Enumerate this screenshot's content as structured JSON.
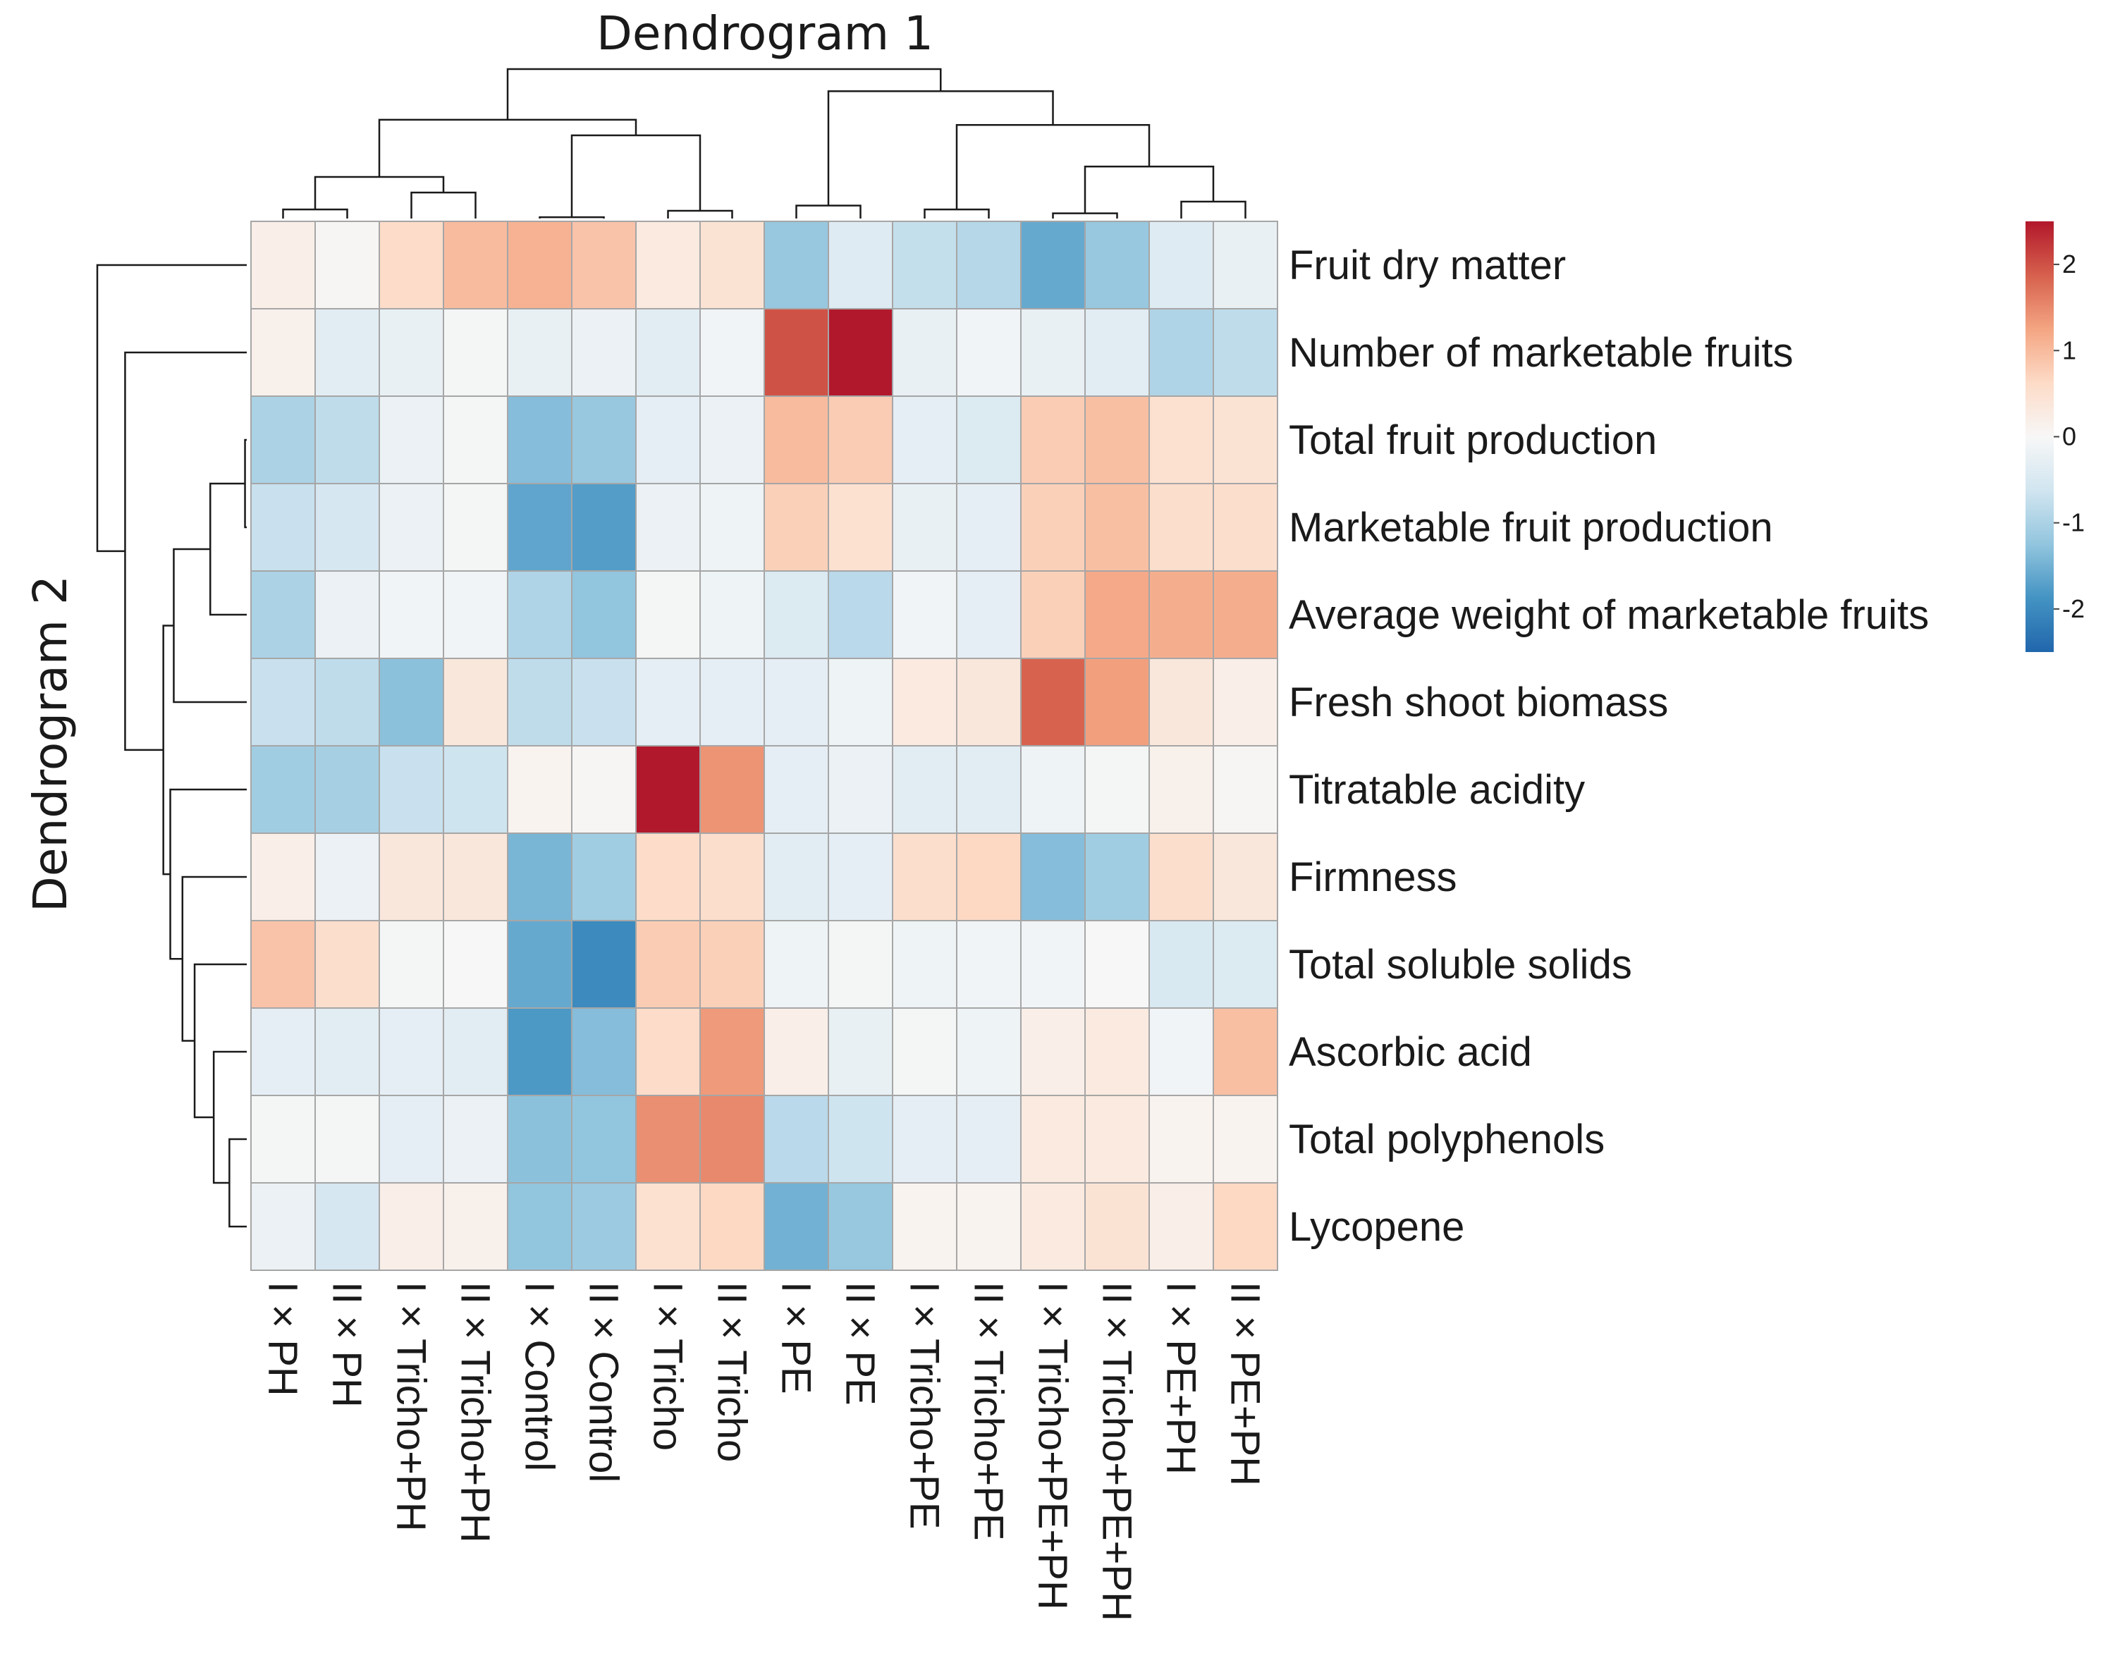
{
  "chart_data": {
    "type": "heatmap",
    "title": "",
    "column_dendrogram_label": "Dendrogram 1",
    "row_dendrogram_label": "Dendrogram 2",
    "columns": [
      "I × PH",
      "II × PH",
      "I × Tricho+PH",
      "II × Tricho+PH",
      "I × Control",
      "II × Control",
      "I × Tricho",
      "II × Tricho",
      "I × PE",
      "II × PE",
      "I × Tricho+PE",
      "II × Tricho+PE",
      "I × Tricho+PE+PH",
      "II × Tricho+PE+PH",
      "I × PE+PH",
      "II × PE+PH"
    ],
    "rows": [
      "Fruit dry matter",
      "Number of marketable fruits",
      "Total fruit production",
      "Marketable fruit production",
      "Average weight of marketable fruits",
      "Fresh shoot biomass",
      "Titratable acidity",
      "Firmness",
      "Total soluble solids",
      "Ascorbic acid",
      "Total polyphenols",
      "Lycopene"
    ],
    "values": [
      [
        0.2,
        0.05,
        0.6,
        1.0,
        1.1,
        0.9,
        0.3,
        0.45,
        -1.2,
        -0.4,
        -0.75,
        -0.9,
        -1.6,
        -1.2,
        -0.4,
        -0.25
      ],
      [
        0.15,
        -0.35,
        -0.25,
        -0.05,
        -0.25,
        -0.2,
        -0.35,
        -0.1,
        2.0,
        2.5,
        -0.25,
        -0.1,
        -0.25,
        -0.35,
        -0.95,
        -0.8
      ],
      [
        -1.0,
        -0.8,
        -0.2,
        -0.05,
        -1.35,
        -1.2,
        -0.3,
        -0.2,
        1.0,
        0.8,
        -0.3,
        -0.45,
        0.8,
        0.95,
        0.5,
        0.45
      ],
      [
        -0.7,
        -0.55,
        -0.2,
        -0.05,
        -1.65,
        -1.75,
        -0.2,
        -0.15,
        0.75,
        0.5,
        -0.25,
        -0.3,
        0.75,
        0.95,
        0.55,
        0.55
      ],
      [
        -1.0,
        -0.2,
        -0.1,
        -0.1,
        -0.95,
        -1.25,
        -0.05,
        -0.15,
        -0.45,
        -0.85,
        -0.1,
        -0.3,
        0.75,
        1.2,
        1.15,
        1.15
      ],
      [
        -0.7,
        -0.8,
        -1.3,
        0.35,
        -0.8,
        -0.7,
        -0.3,
        -0.3,
        -0.3,
        -0.15,
        0.3,
        0.35,
        1.85,
        1.3,
        0.35,
        0.2
      ],
      [
        -1.1,
        -1.05,
        -0.7,
        -0.65,
        0.1,
        0.05,
        2.5,
        1.4,
        -0.3,
        -0.2,
        -0.35,
        -0.35,
        -0.15,
        -0.05,
        0.15,
        0.05
      ],
      [
        0.2,
        -0.2,
        0.35,
        0.35,
        -1.45,
        -1.1,
        0.6,
        0.55,
        -0.35,
        -0.3,
        0.55,
        0.65,
        -1.35,
        -1.1,
        0.55,
        0.35
      ],
      [
        0.9,
        0.55,
        -0.05,
        0.0,
        -1.6,
        -2.0,
        0.8,
        0.75,
        -0.15,
        -0.05,
        -0.15,
        -0.1,
        -0.1,
        0.0,
        -0.5,
        -0.45
      ],
      [
        -0.3,
        -0.35,
        -0.3,
        -0.35,
        -1.8,
        -1.35,
        0.6,
        1.35,
        0.2,
        -0.25,
        -0.05,
        -0.15,
        0.2,
        0.3,
        -0.1,
        0.95
      ],
      [
        -0.05,
        -0.05,
        -0.3,
        -0.2,
        -1.3,
        -1.25,
        1.45,
        1.5,
        -0.85,
        -0.65,
        -0.3,
        -0.3,
        0.3,
        0.3,
        0.1,
        0.1
      ],
      [
        -0.2,
        -0.55,
        0.2,
        0.15,
        -1.25,
        -1.15,
        0.5,
        0.65,
        -1.5,
        -1.2,
        0.1,
        0.1,
        0.3,
        0.45,
        0.2,
        0.65
      ]
    ],
    "color_scale": {
      "min": -2.5,
      "max": 2.5,
      "ticks": [
        -2,
        -1,
        0,
        1,
        2
      ],
      "tick_labels": [
        "-2",
        "-1",
        "0",
        "1",
        "2"
      ],
      "stops": [
        "#2166ac",
        "#4393c3",
        "#92c5de",
        "#d1e5f0",
        "#f7f7f7",
        "#fddbc7",
        "#f4a582",
        "#d6604d",
        "#b2182b"
      ]
    },
    "legend_position": "top-right",
    "column_dendrogram": {
      "order": [
        0,
        1,
        2,
        3,
        4,
        5,
        6,
        7,
        8,
        9,
        10,
        11,
        12,
        13,
        14,
        15
      ],
      "merges": [
        [
          0,
          1,
          0.35
        ],
        [
          2,
          3,
          1.0
        ],
        [
          16,
          17,
          1.6
        ],
        [
          4,
          5,
          0.05
        ],
        [
          6,
          7,
          0.3
        ],
        [
          19,
          20,
          3.2
        ],
        [
          18,
          21,
          3.8
        ],
        [
          8,
          9,
          0.5
        ],
        [
          10,
          11,
          0.35
        ],
        [
          12,
          13,
          0.2
        ],
        [
          14,
          15,
          0.65
        ],
        [
          25,
          26,
          2.0
        ],
        [
          24,
          27,
          3.6
        ],
        [
          23,
          28,
          4.9
        ],
        [
          22,
          29,
          5.75
        ]
      ]
    },
    "row_dendrogram": {
      "order": [
        0,
        1,
        2,
        3,
        4,
        5,
        6,
        7,
        8,
        9,
        10,
        11
      ],
      "merges": [
        [
          2,
          3,
          0.05
        ],
        [
          12,
          4,
          1.05
        ],
        [
          13,
          5,
          2.1
        ],
        [
          10,
          11,
          0.5
        ],
        [
          9,
          15,
          0.95
        ],
        [
          8,
          16,
          1.5
        ],
        [
          7,
          17,
          1.85
        ],
        [
          6,
          18,
          2.2
        ],
        [
          14,
          19,
          2.4
        ],
        [
          1,
          20,
          3.5
        ],
        [
          0,
          21,
          4.3
        ]
      ]
    }
  }
}
